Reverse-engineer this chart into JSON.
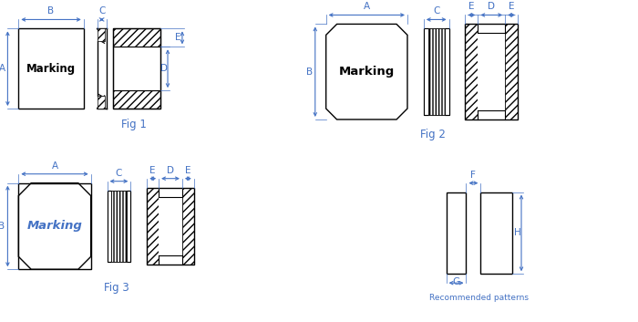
{
  "fig1_label": "Fig 1",
  "fig2_label": "Fig 2",
  "fig3_label": "Fig 3",
  "recommended_label": "Recommended patterns",
  "marking_text": "Marking",
  "dim_color": "#4472c4",
  "line_color": "#000000",
  "bg_color": "#ffffff",
  "font_size": 7.5,
  "label_font_size": 8.5
}
